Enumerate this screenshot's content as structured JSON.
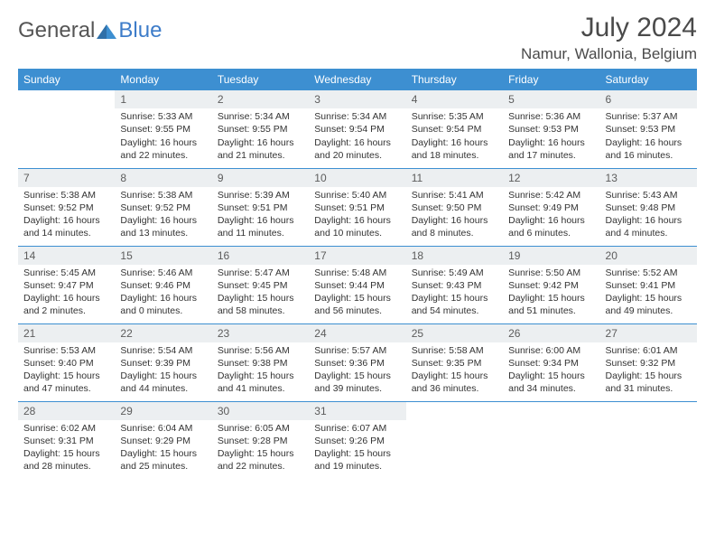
{
  "brand": {
    "part1": "General",
    "part2": "Blue"
  },
  "title": "July 2024",
  "location": "Namur, Wallonia, Belgium",
  "colors": {
    "header_bg": "#3d8fd1",
    "header_text": "#ffffff",
    "daynum_bg": "#eceff1",
    "separator": "#3d8fd1",
    "brand_blue": "#3d7cc9",
    "text": "#333333",
    "background": "#ffffff"
  },
  "weekdays": [
    "Sunday",
    "Monday",
    "Tuesday",
    "Wednesday",
    "Thursday",
    "Friday",
    "Saturday"
  ],
  "weeks": [
    [
      null,
      {
        "n": "1",
        "sunrise": "5:33 AM",
        "sunset": "9:55 PM",
        "daylight": "16 hours and 22 minutes."
      },
      {
        "n": "2",
        "sunrise": "5:34 AM",
        "sunset": "9:55 PM",
        "daylight": "16 hours and 21 minutes."
      },
      {
        "n": "3",
        "sunrise": "5:34 AM",
        "sunset": "9:54 PM",
        "daylight": "16 hours and 20 minutes."
      },
      {
        "n": "4",
        "sunrise": "5:35 AM",
        "sunset": "9:54 PM",
        "daylight": "16 hours and 18 minutes."
      },
      {
        "n": "5",
        "sunrise": "5:36 AM",
        "sunset": "9:53 PM",
        "daylight": "16 hours and 17 minutes."
      },
      {
        "n": "6",
        "sunrise": "5:37 AM",
        "sunset": "9:53 PM",
        "daylight": "16 hours and 16 minutes."
      }
    ],
    [
      {
        "n": "7",
        "sunrise": "5:38 AM",
        "sunset": "9:52 PM",
        "daylight": "16 hours and 14 minutes."
      },
      {
        "n": "8",
        "sunrise": "5:38 AM",
        "sunset": "9:52 PM",
        "daylight": "16 hours and 13 minutes."
      },
      {
        "n": "9",
        "sunrise": "5:39 AM",
        "sunset": "9:51 PM",
        "daylight": "16 hours and 11 minutes."
      },
      {
        "n": "10",
        "sunrise": "5:40 AM",
        "sunset": "9:51 PM",
        "daylight": "16 hours and 10 minutes."
      },
      {
        "n": "11",
        "sunrise": "5:41 AM",
        "sunset": "9:50 PM",
        "daylight": "16 hours and 8 minutes."
      },
      {
        "n": "12",
        "sunrise": "5:42 AM",
        "sunset": "9:49 PM",
        "daylight": "16 hours and 6 minutes."
      },
      {
        "n": "13",
        "sunrise": "5:43 AM",
        "sunset": "9:48 PM",
        "daylight": "16 hours and 4 minutes."
      }
    ],
    [
      {
        "n": "14",
        "sunrise": "5:45 AM",
        "sunset": "9:47 PM",
        "daylight": "16 hours and 2 minutes."
      },
      {
        "n": "15",
        "sunrise": "5:46 AM",
        "sunset": "9:46 PM",
        "daylight": "16 hours and 0 minutes."
      },
      {
        "n": "16",
        "sunrise": "5:47 AM",
        "sunset": "9:45 PM",
        "daylight": "15 hours and 58 minutes."
      },
      {
        "n": "17",
        "sunrise": "5:48 AM",
        "sunset": "9:44 PM",
        "daylight": "15 hours and 56 minutes."
      },
      {
        "n": "18",
        "sunrise": "5:49 AM",
        "sunset": "9:43 PM",
        "daylight": "15 hours and 54 minutes."
      },
      {
        "n": "19",
        "sunrise": "5:50 AM",
        "sunset": "9:42 PM",
        "daylight": "15 hours and 51 minutes."
      },
      {
        "n": "20",
        "sunrise": "5:52 AM",
        "sunset": "9:41 PM",
        "daylight": "15 hours and 49 minutes."
      }
    ],
    [
      {
        "n": "21",
        "sunrise": "5:53 AM",
        "sunset": "9:40 PM",
        "daylight": "15 hours and 47 minutes."
      },
      {
        "n": "22",
        "sunrise": "5:54 AM",
        "sunset": "9:39 PM",
        "daylight": "15 hours and 44 minutes."
      },
      {
        "n": "23",
        "sunrise": "5:56 AM",
        "sunset": "9:38 PM",
        "daylight": "15 hours and 41 minutes."
      },
      {
        "n": "24",
        "sunrise": "5:57 AM",
        "sunset": "9:36 PM",
        "daylight": "15 hours and 39 minutes."
      },
      {
        "n": "25",
        "sunrise": "5:58 AM",
        "sunset": "9:35 PM",
        "daylight": "15 hours and 36 minutes."
      },
      {
        "n": "26",
        "sunrise": "6:00 AM",
        "sunset": "9:34 PM",
        "daylight": "15 hours and 34 minutes."
      },
      {
        "n": "27",
        "sunrise": "6:01 AM",
        "sunset": "9:32 PM",
        "daylight": "15 hours and 31 minutes."
      }
    ],
    [
      {
        "n": "28",
        "sunrise": "6:02 AM",
        "sunset": "9:31 PM",
        "daylight": "15 hours and 28 minutes."
      },
      {
        "n": "29",
        "sunrise": "6:04 AM",
        "sunset": "9:29 PM",
        "daylight": "15 hours and 25 minutes."
      },
      {
        "n": "30",
        "sunrise": "6:05 AM",
        "sunset": "9:28 PM",
        "daylight": "15 hours and 22 minutes."
      },
      {
        "n": "31",
        "sunrise": "6:07 AM",
        "sunset": "9:26 PM",
        "daylight": "15 hours and 19 minutes."
      },
      null,
      null,
      null
    ]
  ],
  "labels": {
    "sunrise": "Sunrise:",
    "sunset": "Sunset:",
    "daylight": "Daylight:"
  }
}
